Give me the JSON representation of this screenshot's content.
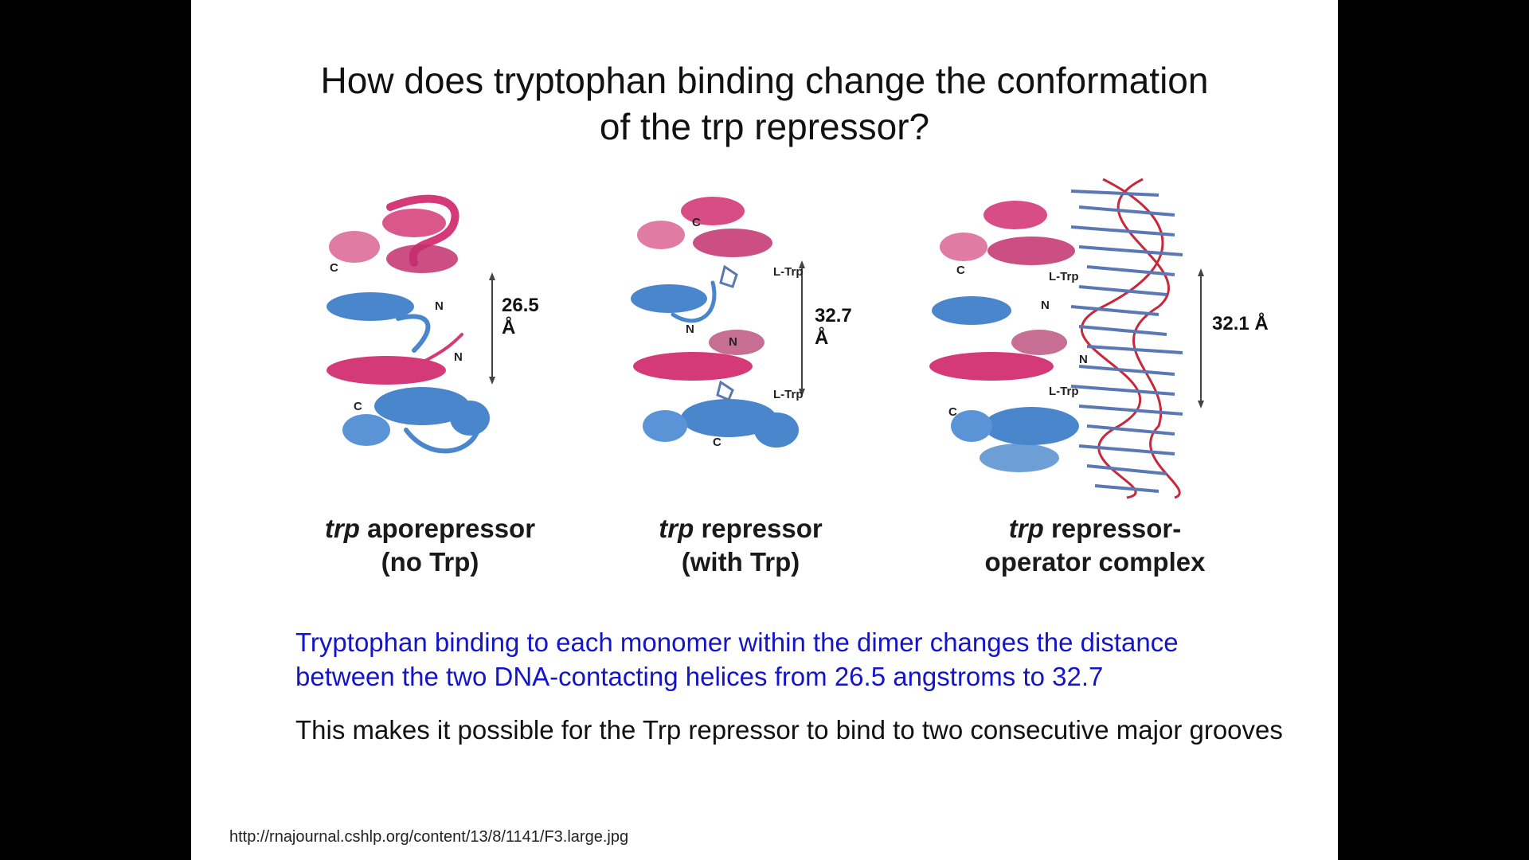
{
  "title": {
    "line1": "How does tryptophan binding change the conformation",
    "line2": "of the trp repressor?"
  },
  "figures": [
    {
      "distance": "26.5 Å",
      "caption_italic": "trp",
      "caption_rest": " aporepressor",
      "caption_line2": "(no Trp)",
      "labels": {
        "c1": "C",
        "n1": "N",
        "n2": "N",
        "c2": "C"
      }
    },
    {
      "distance": "32.7 Å",
      "caption_italic": "trp",
      "caption_rest": " repressor",
      "caption_line2": "(with Trp)",
      "labels": {
        "c1": "C",
        "ltrp1": "L-Trp",
        "n1": "N",
        "n2": "N",
        "ltrp2": "L-Trp",
        "c2": "C"
      }
    },
    {
      "distance": "32.1 Å",
      "caption_italic": "trp",
      "caption_rest": " repressor-",
      "caption_line2": "operator complex",
      "labels": {
        "c1": "C",
        "ltrp1": "L-Trp",
        "n1": "N",
        "n2": "N",
        "ltrp2": "L-Trp",
        "c2": "C"
      }
    }
  ],
  "body": {
    "blue": "Tryptophan binding to each monomer within the dimer changes the distance between the two DNA-contacting helices from 26.5 angstroms to 32.7",
    "black": "This makes it possible for the Trp repressor to bind to two consecutive major grooves"
  },
  "source_url": "http://rnajournal.cshlp.org/content/13/8/1141/F3.large.jpg",
  "colors": {
    "slide_bg": "#ffffff",
    "frame": "#000000",
    "pink_helix": "#d43a78",
    "blue_helix": "#4a86cc",
    "blue_text": "#1414c8",
    "dna_red": "#c8283c",
    "dna_blue": "#5a78b4"
  }
}
